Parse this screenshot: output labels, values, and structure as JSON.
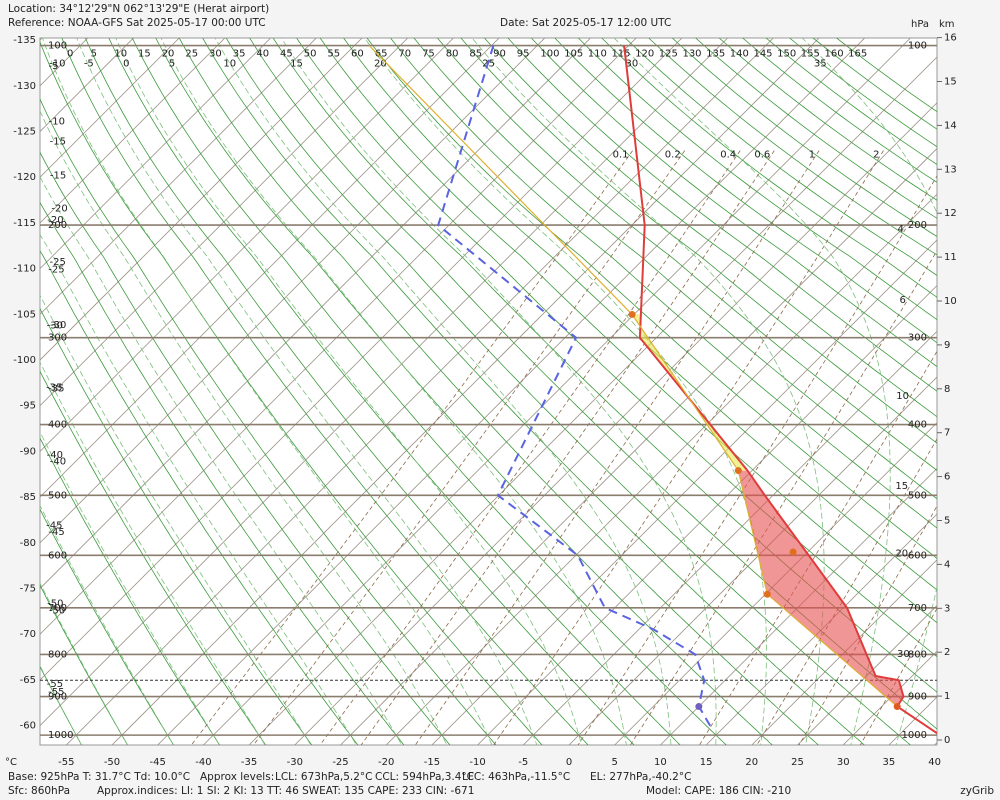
{
  "chart_data": {
    "type": "skewt",
    "header": {
      "location": "Location:  34°12'29\"N  062°13'29\"E (Herat airport)",
      "reference": "Reference: NOAA-GFS Sat 2025-05-17 00:00 UTC",
      "date": "Date: Sat 2025-05-17 12:00 UTC"
    },
    "p_unit": "hPa",
    "z_unit": "km",
    "x_unit": "°C",
    "xticks": [
      -55,
      -50,
      -45,
      -40,
      -35,
      -30,
      -25,
      -20,
      -15,
      -10,
      -5,
      0,
      5,
      10,
      15,
      20,
      25,
      30,
      35,
      40
    ],
    "left_ticks": [
      -135,
      -130,
      -125,
      -120,
      -115,
      -110,
      -105,
      -100,
      -95,
      -90,
      -85,
      -80,
      -75,
      -70,
      -65,
      -60
    ],
    "pticks": [
      100,
      200,
      300,
      400,
      500,
      600,
      700,
      800,
      900,
      1000
    ],
    "zticks": [
      0,
      1,
      2,
      3,
      4,
      5,
      6,
      7,
      8,
      9,
      10,
      11,
      12,
      13,
      14,
      15,
      16
    ],
    "dry_adiabats": [
      -55,
      -50,
      -45,
      -40,
      -35,
      -30,
      -25,
      -20,
      -15,
      -10,
      -5,
      0,
      5,
      10,
      15,
      20,
      25,
      30,
      35,
      40,
      45,
      50,
      55,
      60,
      65,
      70,
      75,
      80,
      85,
      90,
      95,
      100,
      105,
      110,
      115,
      120,
      125,
      130,
      135,
      140,
      145,
      150,
      155,
      160,
      165
    ],
    "moist_adiabats": [
      -55,
      -50,
      -45,
      -40,
      -35,
      -30,
      -25,
      -20,
      -15,
      -10,
      -5,
      0,
      5,
      10,
      15,
      20,
      25,
      30,
      35
    ],
    "mixing_ratios": [
      0.1,
      0.2,
      0.4,
      0.6,
      1,
      2,
      4,
      6,
      10,
      15,
      20,
      30
    ],
    "colors": {
      "isotherm": "#9a9186",
      "pressure": "#8a7d6e",
      "dry": "#3c9a3c",
      "moist": "#7cbf7c",
      "mixing": "#8a6a4a",
      "cin": "#e65050",
      "cape": "#e6e650"
    },
    "series": [
      {
        "color": "#e03c3c",
        "dash": "none",
        "p": [
          100,
          200,
          300,
          400,
          463,
          500,
          700,
          850,
          860,
          900,
          925,
          1000
        ],
        "values": [
          -70.5,
          -48.6,
          -36.8,
          -19.6,
          -10.5,
          -5.9,
          15.4,
          26.0,
          29.0,
          31.3,
          31.7,
          39.5
        ]
      },
      {
        "color": "#5a64e0",
        "dash": "9,6",
        "p": [
          100,
          200,
          300,
          500,
          600,
          700,
          745,
          800,
          860,
          925,
          985
        ],
        "values": [
          -84.8,
          -71.2,
          -43.8,
          -35.1,
          -19.8,
          -11.1,
          -3.4,
          3.9,
          7.7,
          10.0,
          14.0
        ]
      },
      {
        "color": "#e0b030",
        "dash": "none",
        "p": [
          925,
          673,
          463,
          277,
          100
        ],
        "values": [
          31.7,
          5.2,
          -11.5,
          -40.2,
          -98.4
        ]
      }
    ],
    "base": {
      "text": "Base: 925hPa  T: 31.7°C  Td: 10.0°C",
      "p": 925,
      "t": 31.7,
      "td": 10.0
    },
    "sfc": {
      "text": "Sfc: 860hPa",
      "p": 860
    },
    "levels_label": "Approx levels:",
    "levels": [
      {
        "text": "LCL: 673hPa,5.2°C",
        "p": 673,
        "t": 5.2
      },
      {
        "text": "CCL: 594hPa,3.4°C",
        "p": 594,
        "t": 3.4
      },
      {
        "text": "LFC: 463hPa,-11.5°C",
        "p": 463,
        "t": -11.5
      },
      {
        "text": "EL: 277hPa,-40.2°C",
        "p": 277,
        "t": -40.2
      }
    ],
    "indices": "Approx.indices:  LI: 1  SI: 2  KI: 13  TT: 46  SWEAT: 135  CAPE: 233  CIN: -671",
    "model": "Model: CAPE: 186 CIN: -210",
    "credit": "zyGrib"
  }
}
